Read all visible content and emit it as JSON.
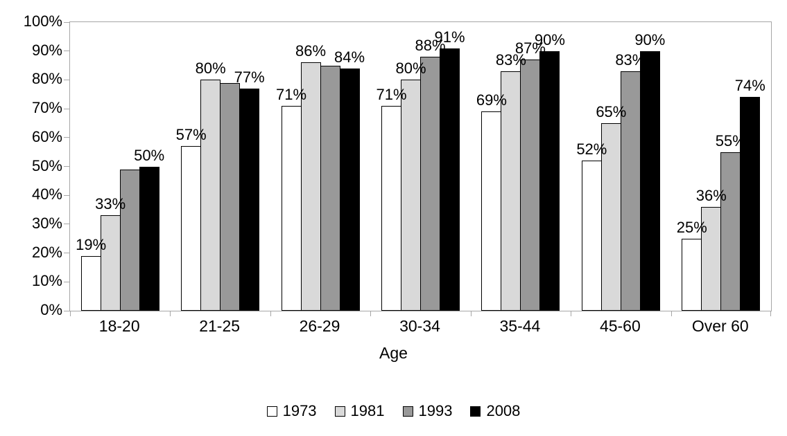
{
  "chart_data": {
    "type": "bar",
    "title": "",
    "xlabel": "Age",
    "ylabel": "",
    "ylim": [
      0,
      100
    ],
    "ytick_step": 10,
    "ytick_labels": [
      "0%",
      "10%",
      "20%",
      "30%",
      "40%",
      "50%",
      "60%",
      "70%",
      "80%",
      "90%",
      "100%"
    ],
    "grid": "none (only top 100% line and plot border)",
    "legend_position": "bottom",
    "categories": [
      "18-20",
      "21-25",
      "26-29",
      "30-34",
      "35-44",
      "45-60",
      "Over 60"
    ],
    "series": [
      {
        "name": "1973",
        "fill": "#ffffff",
        "values": [
          19,
          57,
          71,
          71,
          69,
          52,
          25
        ],
        "labels": [
          "19%",
          "57%",
          "71%",
          "71%",
          "69%",
          "52%",
          "25%"
        ]
      },
      {
        "name": "1981",
        "fill": "#d9d9d9",
        "values": [
          33,
          80,
          86,
          80,
          83,
          65,
          36
        ],
        "labels": [
          "33%",
          "80%",
          "86%",
          "80%",
          "83%",
          "65%",
          "36%"
        ]
      },
      {
        "name": "1993",
        "fill": "#999999",
        "values": [
          49,
          79,
          85,
          88,
          87,
          83,
          55
        ],
        "labels": [
          "",
          "",
          "",
          "88%",
          "87%",
          "83%",
          "55%"
        ]
      },
      {
        "name": "2008",
        "fill": "#000000",
        "values": [
          50,
          77,
          84,
          91,
          90,
          90,
          74
        ],
        "labels": [
          "50%",
          "77%",
          "84%",
          "91%",
          "90%",
          "90%",
          "74%"
        ]
      }
    ],
    "colors": {
      "bar_border": "#000000",
      "axis_line": "#a6a6a6",
      "text": "#000000",
      "background": "#ffffff"
    }
  }
}
